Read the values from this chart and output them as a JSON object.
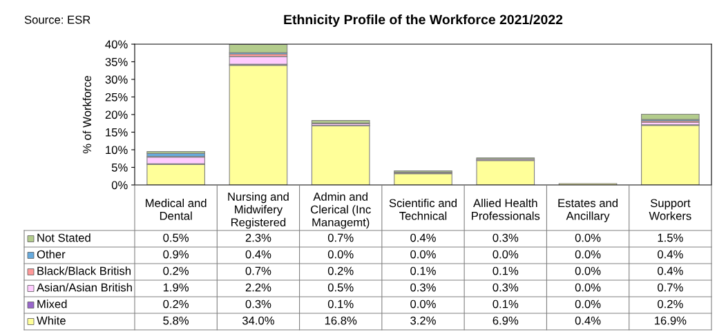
{
  "chart_data": {
    "type": "bar",
    "stacked": true,
    "title": "Ethnicity Profile of the Workforce 2021/2022",
    "ylabel": "% of Workforce",
    "annotations": [
      "Source: ESR"
    ],
    "categories": [
      "Medical and\nDental",
      "Nursing and\nMidwifery\nRegistered",
      "Admin and\nClerical (Inc\nManagemt)",
      "Scientific and\nTechnical",
      "Allied Health\nProfessionals",
      "Estates and\nAncillary",
      "Support\nWorkers"
    ],
    "ylim": [
      0,
      40
    ],
    "yticks": [
      {
        "value": 0,
        "label": "0%"
      },
      {
        "value": 5,
        "label": "5%"
      },
      {
        "value": 10,
        "label": "10%"
      },
      {
        "value": 15,
        "label": "15%"
      },
      {
        "value": 20,
        "label": "20%"
      },
      {
        "value": 25,
        "label": "25%"
      },
      {
        "value": 30,
        "label": "30%"
      },
      {
        "value": 35,
        "label": "35%"
      },
      {
        "value": 40,
        "label": "40%"
      }
    ],
    "grid": false,
    "legend": "bottom left",
    "series": [
      {
        "name": "White",
        "color": "#ffff99",
        "values": [
          5.8,
          34.0,
          16.8,
          3.2,
          6.9,
          0.4,
          16.9
        ],
        "value_labels": [
          "5.8%",
          "34.0%",
          "16.8%",
          "3.2%",
          "6.9%",
          "0.4%",
          "16.9%"
        ]
      },
      {
        "name": "Mixed",
        "color": "#9966cc",
        "values": [
          0.2,
          0.3,
          0.1,
          0.0,
          0.1,
          0.0,
          0.2
        ],
        "value_labels": [
          "0.2%",
          "0.3%",
          "0.1%",
          "0.0%",
          "0.1%",
          "0.0%",
          "0.2%"
        ]
      },
      {
        "name": "Asian/Asian British",
        "color": "#ffccff",
        "values": [
          1.9,
          2.2,
          0.5,
          0.3,
          0.3,
          0.0,
          0.7
        ],
        "value_labels": [
          "1.9%",
          "2.2%",
          "0.5%",
          "0.3%",
          "0.3%",
          "0.0%",
          "0.7%"
        ]
      },
      {
        "name": "Black/Black British",
        "color": "#ff9999",
        "values": [
          0.2,
          0.7,
          0.2,
          0.1,
          0.1,
          0.0,
          0.4
        ],
        "value_labels": [
          "0.2%",
          "0.7%",
          "0.2%",
          "0.1%",
          "0.1%",
          "0.0%",
          "0.4%"
        ]
      },
      {
        "name": "Other",
        "color": "#66aadd",
        "values": [
          0.9,
          0.4,
          0.0,
          0.0,
          0.0,
          0.0,
          0.4
        ],
        "value_labels": [
          "0.9%",
          "0.4%",
          "0.0%",
          "0.0%",
          "0.0%",
          "0.0%",
          "0.4%"
        ]
      },
      {
        "name": "Not Stated",
        "color": "#b3cc8c",
        "values": [
          0.5,
          2.3,
          0.7,
          0.4,
          0.3,
          0.0,
          1.5
        ],
        "value_labels": [
          "0.5%",
          "2.3%",
          "0.7%",
          "0.4%",
          "0.3%",
          "0.0%",
          "1.5%"
        ]
      }
    ]
  }
}
